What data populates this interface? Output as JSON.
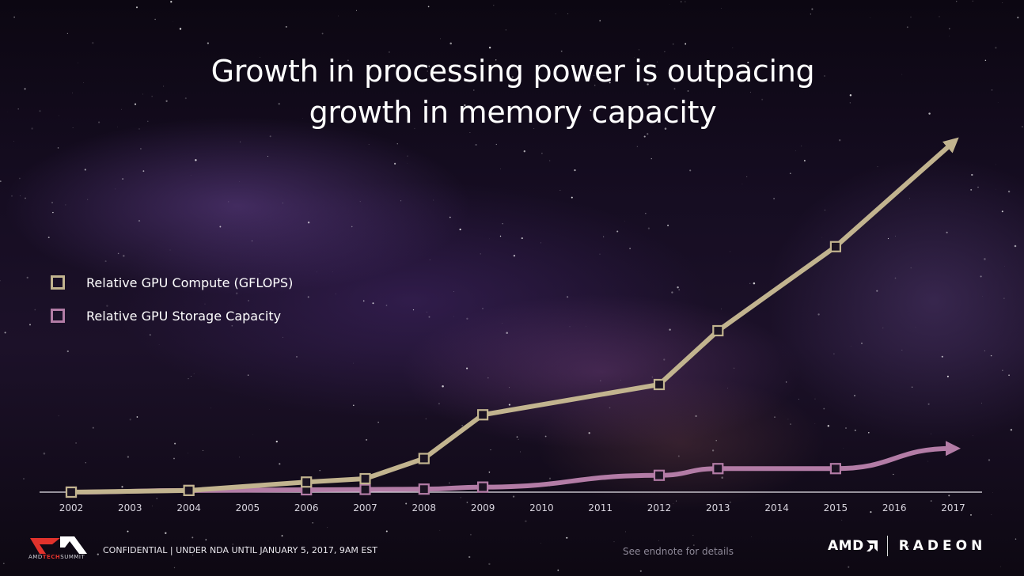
{
  "slide": {
    "title_line1": "Growth in processing power is outpacing",
    "title_line2": "growth in memory capacity",
    "footer_confidential": "CONFIDENTIAL | UNDER NDA UNTIL JANUARY 5, 2017, 9AM EST",
    "footer_note": "See endnote for details",
    "logo_left_prefix": "AMD",
    "logo_left_accent": "TECH",
    "logo_left_suffix": "SUMMIT",
    "brand_amd": "AMD",
    "brand_radeon": "RADEON"
  },
  "colors": {
    "compute": "#c2b48f",
    "storage": "#b37ca6",
    "axis": "#e6e3ea",
    "marker_fill": "#1b1322",
    "tick_text": "#d8d4de"
  },
  "chart_data": {
    "type": "line",
    "title": "Growth in processing power is outpacing growth in memory capacity",
    "categories": [
      "2002",
      "2003",
      "2004",
      "2005",
      "2006",
      "2007",
      "2008",
      "2009",
      "2010",
      "2011",
      "2012",
      "2013",
      "2014",
      "2015",
      "2016",
      "2017"
    ],
    "x_range": [
      2002,
      2017
    ],
    "y_range": [
      0,
      100
    ],
    "grid": false,
    "legend_position": "left-middle",
    "series": [
      {
        "name": "Relative GPU Compute (GFLOPS)",
        "points": [
          {
            "x": 2002,
            "y": 0,
            "marker": true
          },
          {
            "x": 2004,
            "y": 0.5,
            "marker": true
          },
          {
            "x": 2006,
            "y": 3,
            "marker": true
          },
          {
            "x": 2007,
            "y": 4,
            "marker": true
          },
          {
            "x": 2008,
            "y": 10,
            "marker": true
          },
          {
            "x": 2009,
            "y": 23,
            "marker": true
          },
          {
            "x": 2012,
            "y": 32,
            "marker": true
          },
          {
            "x": 2013,
            "y": 48,
            "marker": true
          },
          {
            "x": 2015,
            "y": 73,
            "marker": true
          },
          {
            "x": 2017,
            "y": 104,
            "marker": false,
            "arrow": true
          }
        ]
      },
      {
        "name": "Relative GPU Storage Capacity",
        "points": [
          {
            "x": 2002,
            "y": 0,
            "marker": true
          },
          {
            "x": 2004,
            "y": 0.5,
            "marker": true
          },
          {
            "x": 2006,
            "y": 0.7,
            "marker": true
          },
          {
            "x": 2007,
            "y": 0.8,
            "marker": true
          },
          {
            "x": 2008,
            "y": 0.9,
            "marker": true
          },
          {
            "x": 2009,
            "y": 1.5,
            "marker": true
          },
          {
            "x": 2012,
            "y": 5,
            "marker": true
          },
          {
            "x": 2013,
            "y": 7,
            "marker": true
          },
          {
            "x": 2015,
            "y": 7,
            "marker": true
          },
          {
            "x": 2017,
            "y": 13,
            "marker": false,
            "arrow": true
          }
        ]
      }
    ]
  }
}
